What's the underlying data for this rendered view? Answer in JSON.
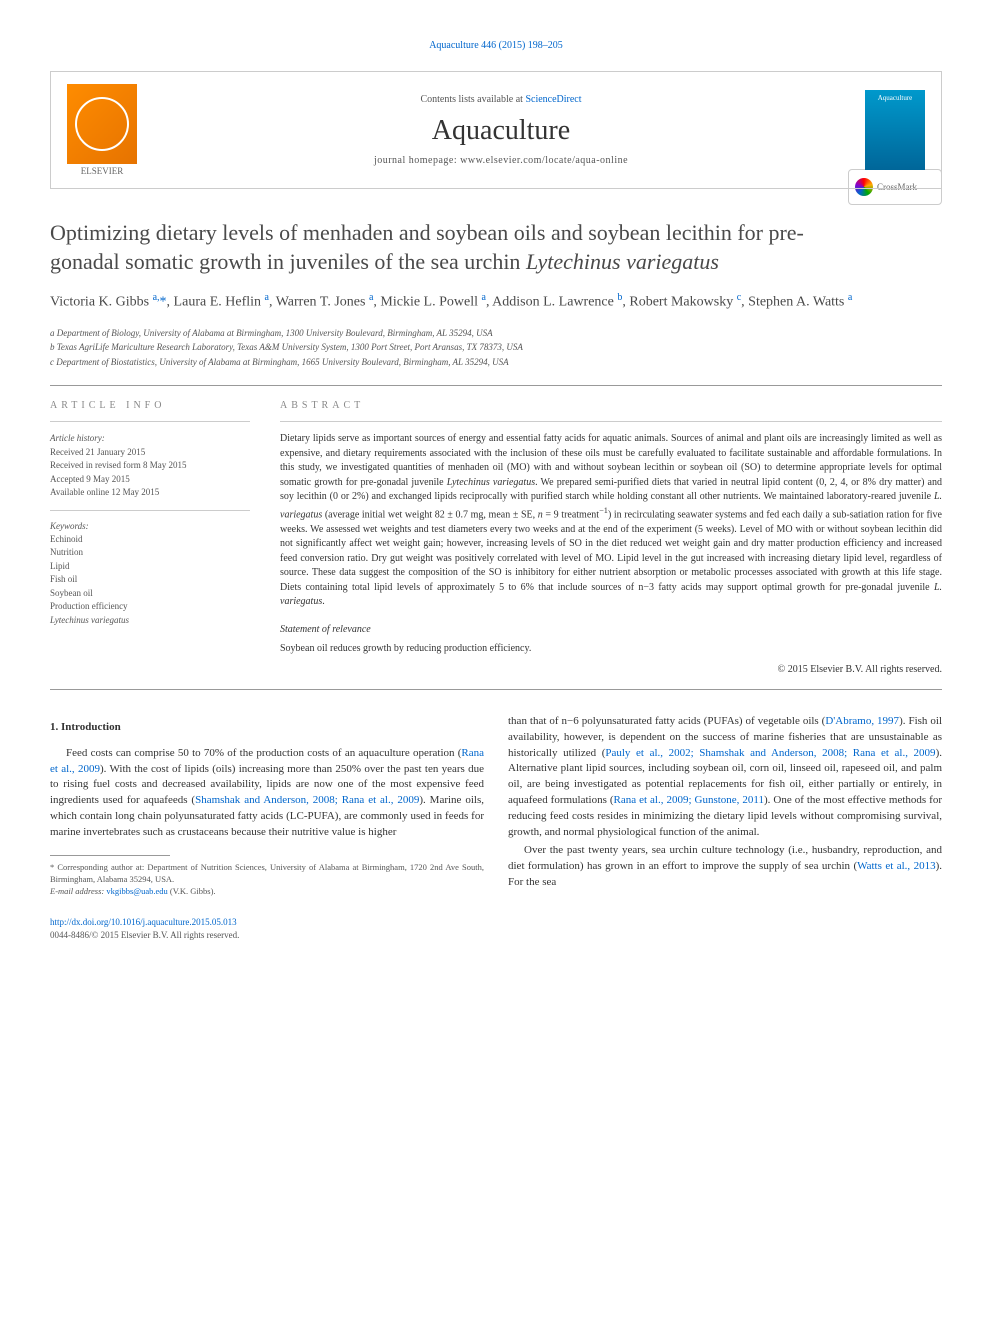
{
  "top_citation": "Aquaculture 446 (2015) 198–205",
  "header": {
    "contents_prefix": "Contents lists available at ",
    "contents_link": "ScienceDirect",
    "journal_name": "Aquaculture",
    "homepage_label": "journal homepage: ",
    "homepage_url": "www.elsevier.com/locate/aqua-online",
    "publisher": "ELSEVIER"
  },
  "crossmark_label": "CrossMark",
  "title_plain": "Optimizing dietary levels of menhaden and soybean oils and soybean lecithin for pre-gonadal somatic growth in juveniles of the sea urchin ",
  "title_species": "Lytechinus variegatus",
  "authors_html": "Victoria K. Gibbs <sup>a,</sup><span class='star'>*</span>, Laura E. Heflin <sup>a</sup>, Warren T. Jones <sup>a</sup>, Mickie L. Powell <sup>a</sup>, Addison L. Lawrence <sup>b</sup>, Robert Makowsky <sup>c</sup>, Stephen A. Watts <sup>a</sup>",
  "affiliations": [
    "a  Department of Biology, University of Alabama at Birmingham, 1300 University Boulevard, Birmingham, AL 35294, USA",
    "b  Texas AgriLife Mariculture Research Laboratory, Texas A&M University System, 1300 Port Street, Port Aransas, TX 78373, USA",
    "c  Department of Biostatistics, University of Alabama at Birmingham, 1665 University Boulevard, Birmingham, AL 35294, USA"
  ],
  "article_info": {
    "label": "article info",
    "history_heading": "Article history:",
    "history": [
      "Received 21 January 2015",
      "Received in revised form 8 May 2015",
      "Accepted 9 May 2015",
      "Available online 12 May 2015"
    ],
    "keywords_heading": "Keywords:",
    "keywords": [
      "Echinoid",
      "Nutrition",
      "Lipid",
      "Fish oil",
      "Soybean oil",
      "Production efficiency",
      "Lytechinus variegatus"
    ]
  },
  "abstract": {
    "label": "abstract",
    "text_html": "Dietary lipids serve as important sources of energy and essential fatty acids for aquatic animals. Sources of animal and plant oils are increasingly limited as well as expensive, and dietary requirements associated with the inclusion of these oils must be carefully evaluated to facilitate sustainable and affordable formulations. In this study, we investigated quantities of menhaden oil (MO) with and without soybean lecithin or soybean oil (SO) to determine appropriate levels for optimal somatic growth for pre-gonadal juvenile <em>Lytechinus variegatus</em>. We prepared semi-purified diets that varied in neutral lipid content (0, 2, 4, or 8% dry matter) and soy lecithin (0 or 2%) and exchanged lipids reciprocally with purified starch while holding constant all other nutrients. We maintained laboratory-reared juvenile <em>L. variegatus</em> (average initial wet weight 82 ± 0.7 mg, mean ± SE, <em>n</em> = 9 treatment<sup>−1</sup>) in recirculating seawater systems and fed each daily a sub-satiation ration for five weeks. We assessed wet weights and test diameters every two weeks and at the end of the experiment (5 weeks). Level of MO with or without soybean lecithin did not significantly affect wet weight gain; however, increasing levels of SO in the diet reduced wet weight gain and dry matter production efficiency and increased feed conversion ratio. Dry gut weight was positively correlated with level of MO. Lipid level in the gut increased with increasing dietary lipid level, regardless of source. These data suggest the composition of the SO is inhibitory for either nutrient absorption or metabolic processes associated with growth at this life stage. Diets containing total lipid levels of approximately 5 to 6% that include sources of n−3 fatty acids may support optimal growth for pre-gonadal juvenile <em>L. variegatus</em>.",
    "relevance_label": "Statement of relevance",
    "relevance_text": "Soybean oil reduces growth by reducing production efficiency.",
    "copyright": "© 2015 Elsevier B.V. All rights reserved."
  },
  "intro": {
    "heading": "1. Introduction",
    "col1_html": "Feed costs can comprise 50 to 70% of the production costs of an aquaculture operation (<span class='cite'>Rana et al., 2009</span>). With the cost of lipids (oils) increasing more than 250% over the past ten years due to rising fuel costs and decreased availability, lipids are now one of the most expensive feed ingredients used for aquafeeds (<span class='cite'>Shamshak and Anderson, 2008; Rana et al., 2009</span>). Marine oils, which contain long chain polyunsaturated fatty acids (LC-PUFA), are commonly used in feeds for marine invertebrates such as crustaceans because their nutritive value is higher",
    "col2_html": "than that of n−6 polyunsaturated fatty acids (PUFAs) of vegetable oils (<span class='cite'>D'Abramo, 1997</span>). Fish oil availability, however, is dependent on the success of marine fisheries that are unsustainable as historically utilized (<span class='cite'>Pauly et al., 2002; Shamshak and Anderson, 2008; Rana et al., 2009</span>). Alternative plant lipid sources, including soybean oil, corn oil, linseed oil, rapeseed oil, and palm oil, are being investigated as potential replacements for fish oil, either partially or entirely, in aquafeed formulations (<span class='cite'>Rana et al., 2009; Gunstone, 2011</span>). One of the most effective methods for reducing feed costs resides in minimizing the dietary lipid levels without compromising survival, growth, and normal physiological function of the animal.",
    "col2_p2_html": "Over the past twenty years, sea urchin culture technology (i.e., husbandry, reproduction, and diet formulation) has grown in an effort to improve the supply of sea urchin (<span class='cite'>Watts et al., 2013</span>). For the sea"
  },
  "footnote": {
    "corr_label": "* Corresponding author at: Department of Nutrition Sciences, University of Alabama at Birmingham, 1720 2nd Ave South, Birmingham, Alabama 35294, USA.",
    "email_label": "E-mail address: ",
    "email": "vkgibbs@uab.edu",
    "email_suffix": " (V.K. Gibbs)."
  },
  "doi": {
    "url": "http://dx.doi.org/10.1016/j.aquaculture.2015.05.013",
    "issn_line": "0044-8486/© 2015 Elsevier B.V. All rights reserved."
  },
  "colors": {
    "link": "#0066cc",
    "text": "#333333",
    "muted": "#555555",
    "border": "#cccccc",
    "elsevier_orange": "#ff8c00",
    "cover_blue": "#0099cc"
  }
}
